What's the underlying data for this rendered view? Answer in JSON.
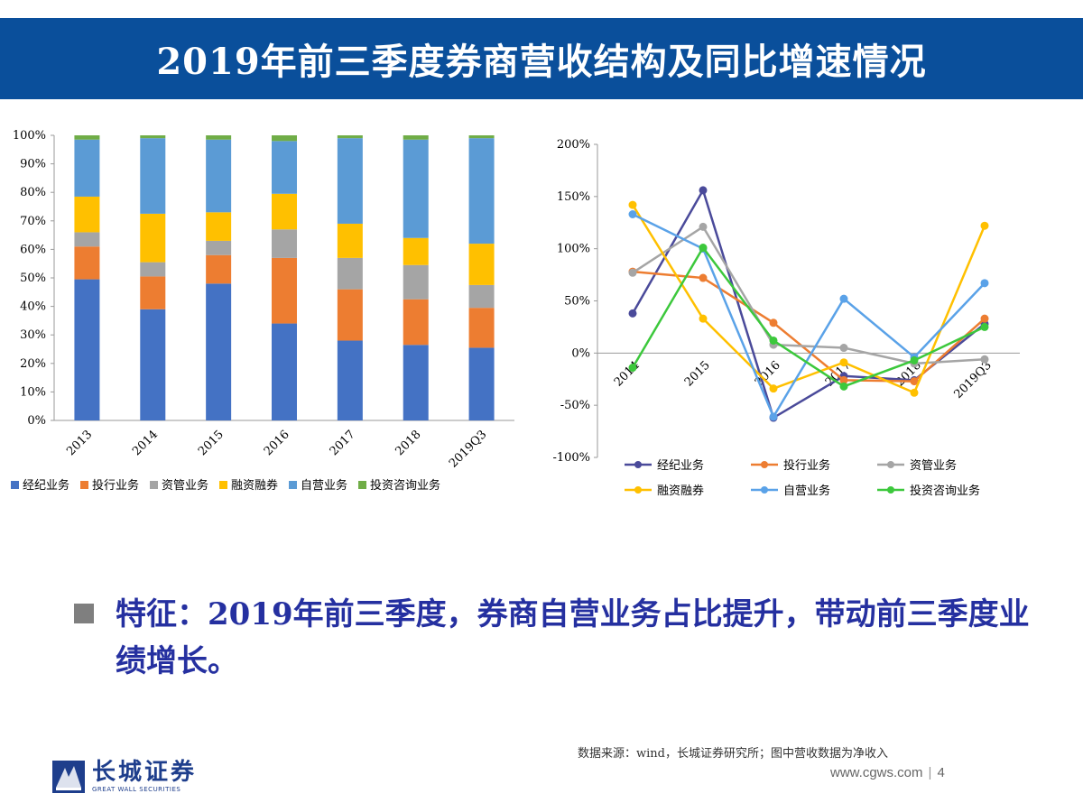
{
  "title": "2019年前三季度券商营收结构及同比增速情况",
  "colors": {
    "title_bg": "#0a4f9b",
    "stack": [
      "#4472c4",
      "#ed7d31",
      "#a5a5a5",
      "#ffc000",
      "#5b9bd5",
      "#70ad47"
    ],
    "lines": [
      "#4a4a9a",
      "#ed7d31",
      "#a5a5a5",
      "#ffc000",
      "#5aa2e8",
      "#3cc83c"
    ]
  },
  "chart_data": [
    {
      "type": "bar",
      "stacked": true,
      "categories": [
        "2013",
        "2014",
        "2015",
        "2016",
        "2017",
        "2018",
        "2019Q3"
      ],
      "series": [
        {
          "name": "经纪业务",
          "values": [
            49.5,
            39,
            48,
            34,
            28,
            26.5,
            25.5
          ]
        },
        {
          "name": "投行业务",
          "values": [
            11.5,
            11.5,
            10,
            23,
            18,
            16,
            14
          ]
        },
        {
          "name": "资管业务",
          "values": [
            5,
            5,
            5,
            10,
            11,
            12,
            8
          ]
        },
        {
          "name": "融资融券",
          "values": [
            12.5,
            17,
            10,
            12.5,
            12,
            9.5,
            14.5
          ]
        },
        {
          "name": "自营业务",
          "values": [
            20,
            26.5,
            25.5,
            18.5,
            30,
            34.5,
            37
          ]
        },
        {
          "name": "投资咨询业务",
          "values": [
            1.5,
            1,
            1.5,
            2,
            1,
            1.5,
            1
          ]
        }
      ],
      "ylim": [
        0,
        100
      ],
      "yticks": [
        "0%",
        "10%",
        "20%",
        "30%",
        "40%",
        "50%",
        "60%",
        "70%",
        "80%",
        "90%",
        "100%"
      ],
      "legend": "bottom",
      "grid": false
    },
    {
      "type": "line",
      "categories": [
        "2014",
        "2015",
        "2016",
        "2017",
        "2018",
        "2019Q3"
      ],
      "series": [
        {
          "name": "经纪业务",
          "values": [
            38,
            156,
            -62,
            -22,
            -26,
            28
          ]
        },
        {
          "name": "投行业务",
          "values": [
            78,
            72,
            29,
            -26,
            -27,
            33
          ]
        },
        {
          "name": "资管业务",
          "values": [
            77,
            121,
            8,
            5,
            -10,
            -6
          ]
        },
        {
          "name": "融资融券",
          "values": [
            142,
            33,
            -34,
            -9,
            -38,
            122
          ]
        },
        {
          "name": "自营业务",
          "values": [
            133,
            100,
            -61,
            52,
            -4,
            67
          ]
        },
        {
          "name": "投资咨询业务",
          "values": [
            -14,
            101,
            12,
            -32,
            -7,
            25
          ]
        }
      ],
      "ylim": [
        -100,
        200
      ],
      "yticks": [
        "-100%",
        "-50%",
        "0%",
        "50%",
        "100%",
        "150%",
        "200%"
      ],
      "legend": "bottom",
      "grid": false
    }
  ],
  "feature_text": "特征：2019年前三季度，券商自营业务占比提升，带动前三季度业绩增长。",
  "source_note": "数据来源：wind，长城证券研究所；图中营收数据为净收入",
  "footer": {
    "url": "www.cgws.com",
    "separator": "|",
    "page": "4"
  },
  "logo": {
    "cn": "长城证券",
    "en": "GREAT WALL SECURITIES"
  }
}
